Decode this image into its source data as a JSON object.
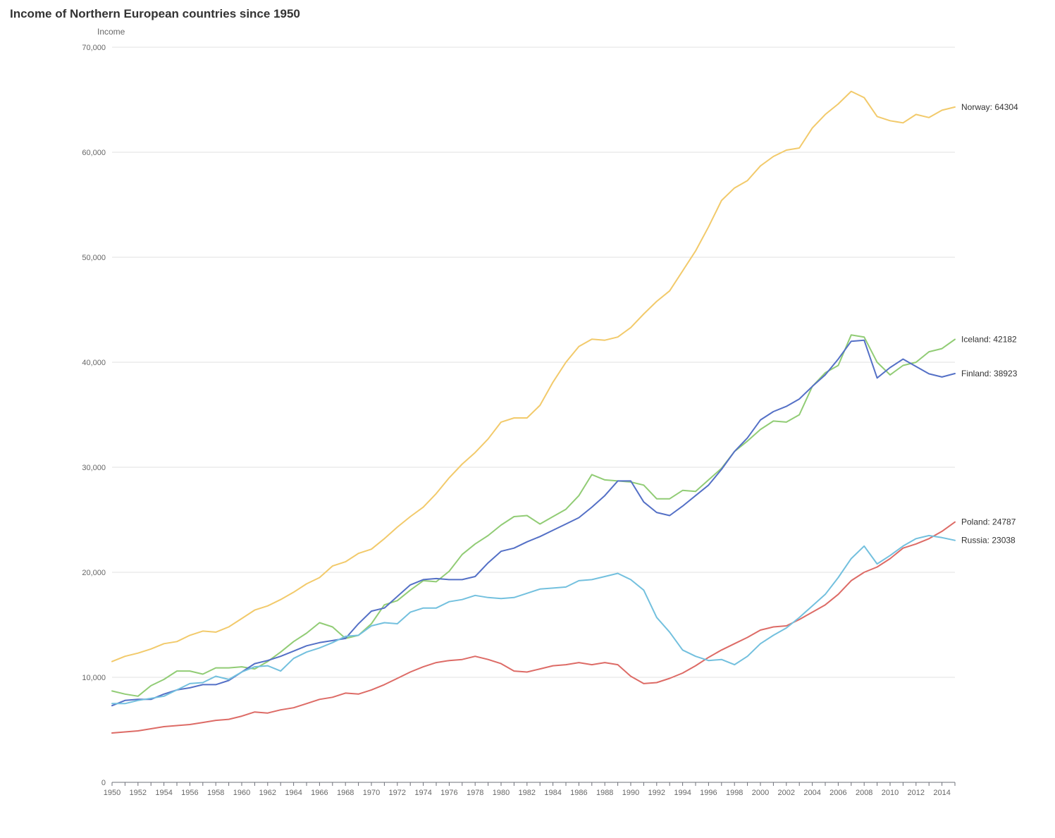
{
  "chart_data": {
    "type": "line",
    "title": "Income of Northern European countries since 1950",
    "ylabel": "Income",
    "xlabel": "",
    "ylim": [
      0,
      70000
    ],
    "yticks": [
      0,
      10000,
      20000,
      30000,
      40000,
      50000,
      60000,
      70000
    ],
    "ytick_labels": [
      "0",
      "10,000",
      "20,000",
      "30,000",
      "40,000",
      "50,000",
      "60,000",
      "70,000"
    ],
    "x": [
      1950,
      1951,
      1952,
      1953,
      1954,
      1955,
      1956,
      1957,
      1958,
      1959,
      1960,
      1961,
      1962,
      1963,
      1964,
      1965,
      1966,
      1967,
      1968,
      1969,
      1970,
      1971,
      1972,
      1973,
      1974,
      1975,
      1976,
      1977,
      1978,
      1979,
      1980,
      1981,
      1982,
      1983,
      1984,
      1985,
      1986,
      1987,
      1988,
      1989,
      1990,
      1991,
      1992,
      1993,
      1994,
      1995,
      1996,
      1997,
      1998,
      1999,
      2000,
      2001,
      2002,
      2003,
      2004,
      2005,
      2006,
      2007,
      2008,
      2009,
      2010,
      2011,
      2012,
      2013,
      2014,
      2015
    ],
    "xtick_labels": [
      "1950",
      "1952",
      "1954",
      "1956",
      "1958",
      "1960",
      "1962",
      "1964",
      "1966",
      "1968",
      "1970",
      "1972",
      "1974",
      "1976",
      "1978",
      "1980",
      "1982",
      "1984",
      "1986",
      "1988",
      "1990",
      "1992",
      "1994",
      "1996",
      "1998",
      "2000",
      "2002",
      "2004",
      "2006",
      "2008",
      "2010",
      "2012",
      "2014"
    ],
    "grid": true,
    "legend": "end-labels",
    "series": [
      {
        "name": "Norway",
        "color": "#f2ca6b",
        "end_label": "Norway: 64304",
        "values": [
          11500,
          12000,
          12300,
          12700,
          13200,
          13400,
          14000,
          14400,
          14300,
          14800,
          15600,
          16400,
          16800,
          17400,
          18100,
          18900,
          19500,
          20600,
          21000,
          21800,
          22200,
          23200,
          24300,
          25300,
          26200,
          27500,
          29000,
          30300,
          31400,
          32700,
          34300,
          34700,
          34700,
          35900,
          38100,
          40000,
          41500,
          42200,
          42100,
          42400,
          43300,
          44600,
          45800,
          46800,
          48700,
          50600,
          52900,
          55400,
          56600,
          57300,
          58700,
          59600,
          60200,
          60400,
          62300,
          63600,
          64600,
          65800,
          65200,
          63400,
          63000,
          62800,
          63600,
          63300,
          64000,
          64304
        ]
      },
      {
        "name": "Iceland",
        "color": "#91cc75",
        "end_label": "Iceland: 42182",
        "values": [
          8700,
          8400,
          8200,
          9200,
          9800,
          10600,
          10600,
          10300,
          10900,
          10900,
          11000,
          10800,
          11500,
          12400,
          13400,
          14200,
          15200,
          14800,
          13700,
          14000,
          15100,
          16900,
          17300,
          18300,
          19200,
          19100,
          20100,
          21700,
          22700,
          23500,
          24500,
          25300,
          25400,
          24600,
          25300,
          26000,
          27300,
          29300,
          28800,
          28700,
          28600,
          28300,
          27000,
          27000,
          27800,
          27700,
          28800,
          29900,
          31500,
          32500,
          33600,
          34400,
          34300,
          35000,
          37700,
          39000,
          39700,
          42600,
          42400,
          40000,
          38800,
          39700,
          40000,
          41000,
          41300,
          42182
        ]
      },
      {
        "name": "Finland",
        "color": "#5470c6",
        "end_label": "Finland: 38923",
        "values": [
          7300,
          7800,
          7900,
          7900,
          8400,
          8800,
          9000,
          9300,
          9300,
          9700,
          10500,
          11300,
          11600,
          12000,
          12500,
          13000,
          13300,
          13500,
          13700,
          15100,
          16300,
          16600,
          17700,
          18800,
          19300,
          19400,
          19300,
          19300,
          19600,
          20900,
          22000,
          22300,
          22900,
          23400,
          24000,
          24600,
          25200,
          26200,
          27300,
          28700,
          28700,
          26700,
          25700,
          25400,
          26300,
          27300,
          28300,
          29800,
          31500,
          32800,
          34500,
          35300,
          35800,
          36500,
          37700,
          38800,
          40300,
          42000,
          42100,
          38500,
          39500,
          40300,
          39600,
          38900,
          38600,
          38923
        ]
      },
      {
        "name": "Poland",
        "color": "#dd6b66",
        "end_label": "Poland: 24787",
        "values": [
          4700,
          4800,
          4900,
          5100,
          5300,
          5400,
          5500,
          5700,
          5900,
          6000,
          6300,
          6700,
          6600,
          6900,
          7100,
          7500,
          7900,
          8100,
          8500,
          8400,
          8800,
          9300,
          9900,
          10500,
          11000,
          11400,
          11600,
          11700,
          12000,
          11700,
          11300,
          10600,
          10500,
          10800,
          11100,
          11200,
          11400,
          11200,
          11400,
          11200,
          10100,
          9400,
          9500,
          9900,
          10400,
          11100,
          11900,
          12600,
          13200,
          13800,
          14500,
          14800,
          14900,
          15500,
          16200,
          16900,
          17900,
          19200,
          20000,
          20500,
          21300,
          22300,
          22700,
          23200,
          23900,
          24787
        ]
      },
      {
        "name": "Russia",
        "color": "#73c0de",
        "end_label": "Russia: 23038",
        "values": [
          7500,
          7500,
          7800,
          8000,
          8200,
          8800,
          9400,
          9500,
          10100,
          9800,
          10500,
          11000,
          11100,
          10600,
          11800,
          12400,
          12800,
          13300,
          13900,
          14000,
          14900,
          15200,
          15100,
          16200,
          16600,
          16600,
          17200,
          17400,
          17800,
          17600,
          17500,
          17600,
          18000,
          18400,
          18500,
          18600,
          19200,
          19300,
          19600,
          19900,
          19300,
          18300,
          15700,
          14300,
          12600,
          12000,
          11600,
          11700,
          11200,
          12000,
          13200,
          14000,
          14700,
          15700,
          16800,
          17900,
          19500,
          21300,
          22500,
          20800,
          21600,
          22500,
          23200,
          23500,
          23300,
          23038
        ]
      }
    ]
  }
}
